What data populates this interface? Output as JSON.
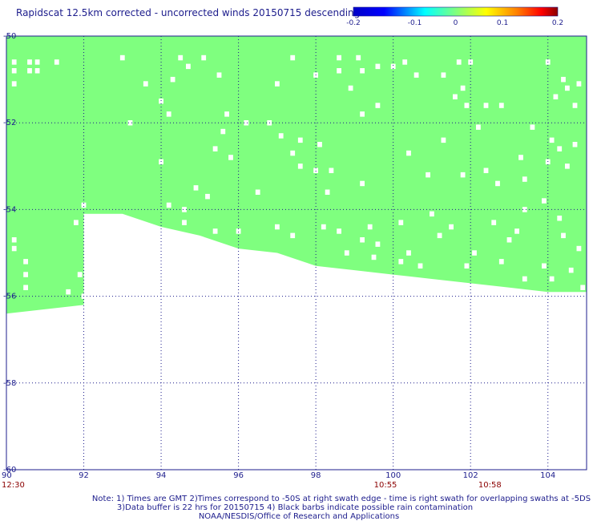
{
  "chart_data": {
    "type": "heatmap",
    "title": "Rapidscat 12.5km corrected - uncorrected winds 20150715 descending",
    "xlim": [
      90,
      105
    ],
    "ylim": [
      -60,
      -50
    ],
    "x_ticks": [
      "90",
      "92",
      "94",
      "96",
      "98",
      "100",
      "102",
      "104"
    ],
    "y_ticks": [
      "-50",
      "-52",
      "-54",
      "-56",
      "-58",
      "-60"
    ],
    "time_labels": [
      {
        "lon": 90,
        "text": "12:30"
      },
      {
        "lon": 99.8,
        "text": "10:55"
      },
      {
        "lon": 102.5,
        "text": "10:58"
      }
    ],
    "colorbar": {
      "min": -0.2,
      "max": 0.2,
      "labels": [
        "-0.2",
        "-0.1",
        "0",
        "0.1",
        "0.2"
      ],
      "stops": [
        "#0000c8",
        "#0000ff",
        "#00ffff",
        "#7fff7f",
        "#ffff00",
        "#ff8000",
        "#ff0000",
        "#8b0000"
      ]
    },
    "field": {
      "value": 0,
      "color": "#7fff7f",
      "coverage_bottom": [
        {
          "lon": 90.0,
          "lat": -56.4
        },
        {
          "lon": 92.0,
          "lat": -56.2
        },
        {
          "lon": 92.0,
          "lat": -54.1
        },
        {
          "lon": 93.0,
          "lat": -54.1
        },
        {
          "lon": 94.0,
          "lat": -54.4
        },
        {
          "lon": 95.0,
          "lat": -54.6
        },
        {
          "lon": 96.0,
          "lat": -54.9
        },
        {
          "lon": 97.0,
          "lat": -55.0
        },
        {
          "lon": 98.0,
          "lat": -55.3
        },
        {
          "lon": 99.0,
          "lat": -55.4
        },
        {
          "lon": 100.0,
          "lat": -55.5
        },
        {
          "lon": 101.0,
          "lat": -55.6
        },
        {
          "lon": 102.0,
          "lat": -55.7
        },
        {
          "lon": 103.0,
          "lat": -55.8
        },
        {
          "lon": 104.0,
          "lat": -55.9
        },
        {
          "lon": 105.0,
          "lat": -55.9
        }
      ]
    },
    "missing_cells": [
      [
        90.2,
        -50.6
      ],
      [
        90.6,
        -50.6
      ],
      [
        90.8,
        -50.6
      ],
      [
        91.3,
        -50.6
      ],
      [
        90.2,
        -50.8
      ],
      [
        90.6,
        -50.8
      ],
      [
        90.8,
        -50.8
      ],
      [
        90.2,
        -51.1
      ],
      [
        92.0,
        -53.9
      ],
      [
        91.8,
        -54.3
      ],
      [
        90.2,
        -54.7
      ],
      [
        90.2,
        -54.9
      ],
      [
        90.5,
        -55.2
      ],
      [
        90.5,
        -55.5
      ],
      [
        91.9,
        -55.5
      ],
      [
        90.5,
        -55.8
      ],
      [
        91.6,
        -55.9
      ],
      [
        92.0,
        -56.0
      ],
      [
        93.0,
        -50.5
      ],
      [
        93.6,
        -51.1
      ],
      [
        94.5,
        -50.5
      ],
      [
        94.7,
        -50.7
      ],
      [
        95.1,
        -50.5
      ],
      [
        94.3,
        -51.0
      ],
      [
        95.5,
        -50.9
      ],
      [
        94.0,
        -51.5
      ],
      [
        94.2,
        -51.8
      ],
      [
        95.7,
        -51.8
      ],
      [
        95.6,
        -52.2
      ],
      [
        96.2,
        -52.0
      ],
      [
        93.2,
        -52.0
      ],
      [
        94.0,
        -52.9
      ],
      [
        95.4,
        -52.6
      ],
      [
        95.8,
        -52.8
      ],
      [
        94.9,
        -53.5
      ],
      [
        95.2,
        -53.7
      ],
      [
        96.5,
        -53.6
      ],
      [
        94.2,
        -53.9
      ],
      [
        94.6,
        -54.0
      ],
      [
        94.6,
        -54.3
      ],
      [
        95.4,
        -54.5
      ],
      [
        96.0,
        -54.5
      ],
      [
        97.4,
        -50.5
      ],
      [
        98.0,
        -50.9
      ],
      [
        98.6,
        -50.5
      ],
      [
        99.1,
        -50.5
      ],
      [
        98.6,
        -50.8
      ],
      [
        99.2,
        -50.8
      ],
      [
        99.6,
        -50.7
      ],
      [
        97.0,
        -51.1
      ],
      [
        98.9,
        -51.2
      ],
      [
        99.6,
        -51.6
      ],
      [
        99.2,
        -51.8
      ],
      [
        96.8,
        -52.0
      ],
      [
        97.1,
        -52.3
      ],
      [
        97.6,
        -52.4
      ],
      [
        98.1,
        -52.5
      ],
      [
        97.4,
        -52.7
      ],
      [
        97.6,
        -53.0
      ],
      [
        98.0,
        -53.1
      ],
      [
        98.4,
        -53.1
      ],
      [
        99.2,
        -53.4
      ],
      [
        98.3,
        -53.6
      ],
      [
        97.0,
        -54.4
      ],
      [
        97.4,
        -54.6
      ],
      [
        98.2,
        -54.4
      ],
      [
        98.6,
        -54.5
      ],
      [
        99.4,
        -54.4
      ],
      [
        100.2,
        -54.3
      ],
      [
        99.2,
        -54.7
      ],
      [
        99.6,
        -54.8
      ],
      [
        98.8,
        -55.0
      ],
      [
        99.5,
        -55.1
      ],
      [
        100.4,
        -55.0
      ],
      [
        100.2,
        -55.2
      ],
      [
        100.7,
        -55.3
      ],
      [
        100.0,
        -50.7
      ],
      [
        100.3,
        -50.6
      ],
      [
        100.6,
        -50.9
      ],
      [
        101.7,
        -50.6
      ],
      [
        101.3,
        -50.9
      ],
      [
        102.0,
        -50.6
      ],
      [
        101.8,
        -51.2
      ],
      [
        101.6,
        -51.4
      ],
      [
        101.9,
        -51.6
      ],
      [
        102.4,
        -51.6
      ],
      [
        102.8,
        -51.6
      ],
      [
        102.2,
        -52.1
      ],
      [
        101.3,
        -52.4
      ],
      [
        100.4,
        -52.7
      ],
      [
        100.9,
        -53.2
      ],
      [
        101.8,
        -53.2
      ],
      [
        102.4,
        -53.1
      ],
      [
        102.7,
        -53.4
      ],
      [
        103.4,
        -53.3
      ],
      [
        101.0,
        -54.1
      ],
      [
        101.5,
        -54.4
      ],
      [
        101.2,
        -54.6
      ],
      [
        102.6,
        -54.3
      ],
      [
        103.0,
        -54.7
      ],
      [
        102.1,
        -55.0
      ],
      [
        101.9,
        -55.3
      ],
      [
        102.8,
        -55.2
      ],
      [
        104.0,
        -50.6
      ],
      [
        104.4,
        -51.0
      ],
      [
        104.8,
        -51.1
      ],
      [
        104.5,
        -51.2
      ],
      [
        104.2,
        -51.4
      ],
      [
        104.7,
        -51.6
      ],
      [
        103.6,
        -52.1
      ],
      [
        104.1,
        -52.4
      ],
      [
        104.3,
        -52.6
      ],
      [
        104.7,
        -52.5
      ],
      [
        103.3,
        -52.8
      ],
      [
        104.0,
        -52.9
      ],
      [
        104.5,
        -53.0
      ],
      [
        103.9,
        -53.8
      ],
      [
        103.4,
        -54.0
      ],
      [
        104.3,
        -54.2
      ],
      [
        103.2,
        -54.5
      ],
      [
        104.4,
        -54.6
      ],
      [
        104.8,
        -54.9
      ],
      [
        103.9,
        -55.3
      ],
      [
        103.4,
        -55.6
      ],
      [
        104.1,
        -55.6
      ],
      [
        104.6,
        -55.4
      ],
      [
        104.9,
        -55.8
      ]
    ],
    "notes": [
      "Note: 1) Times are GMT 2)Times correspond to -50S at right swath edge - time is right swath for overlapping swaths at -5DS",
      "3)Data buffer is 22 hrs for 20150715 4) Black barbs indicate possible rain contamination",
      "NOAA/NESDIS/Office of Research and Applications"
    ]
  }
}
